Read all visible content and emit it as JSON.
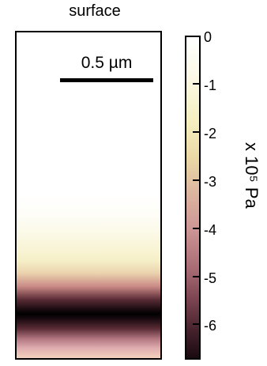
{
  "title": "surface",
  "scale_bar": {
    "label": "0.5 µm"
  },
  "colorbar": {
    "ticks": [
      "0",
      "-1",
      "-2",
      "-3",
      "-4",
      "-5",
      "-6"
    ],
    "unit_label": "x 10⁵ Pa"
  },
  "colors": {
    "min": "#000000",
    "mid": "#c98a86",
    "max": "#ffffff"
  }
}
